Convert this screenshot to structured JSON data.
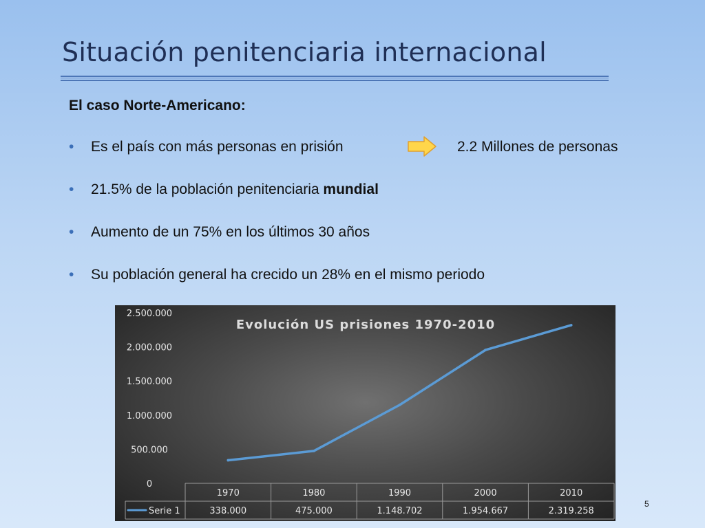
{
  "slide": {
    "title": "Situación penitenciaria internacional",
    "subtitle": "El caso Norte-Americano:",
    "bullet_marker": "•",
    "bullets": {
      "b1_left": "Es el país con más personas en prisión",
      "b1_right": "2.2 Millones de personas",
      "b2_text": "21.5% de la población penitenciaria ",
      "b2_bold": "mundial",
      "b3": "Aumento de un 75% en los últimos 30 años",
      "b4": "Su población general ha crecido un 28% en el mismo periodo"
    },
    "page_number": "5",
    "arrow_icon": "right-arrow-icon"
  },
  "colors": {
    "title": "#1f2f55",
    "bullet_marker": "#3b6fb8",
    "arrow_fill": "#ffd64a",
    "series_line": "#5b9bd5",
    "chart_text": "#e6e6e6"
  },
  "chart_data": {
    "type": "line",
    "title": "Evolución US prisiones 1970-2010",
    "categories": [
      "1970",
      "1980",
      "1990",
      "2000",
      "2010"
    ],
    "series": [
      {
        "name": "Serie 1",
        "values": [
          338000,
          475000,
          1148702,
          1954667,
          2319258
        ],
        "labels": [
          "338.000",
          "475.000",
          "1.148.702",
          "1.954.667",
          "2.319.258"
        ]
      }
    ],
    "y_ticks": [
      "0",
      "500.000",
      "1.000.000",
      "1.500.000",
      "2.000.000",
      "2.500.000"
    ],
    "ylim": [
      0,
      2500000
    ],
    "grid": false,
    "legend": "data-table",
    "data_table": true
  }
}
